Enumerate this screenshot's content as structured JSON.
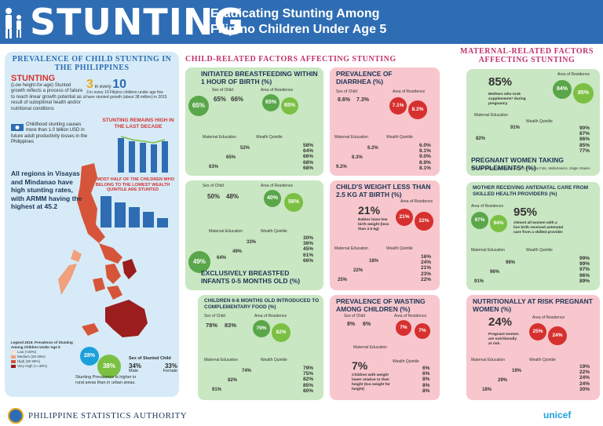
{
  "header": {
    "title": "STUNTING",
    "subtitle_line1": "Eradicating Stunting Among",
    "subtitle_line2": "Filipino Children Under Age 5"
  },
  "left": {
    "heading": "PREVALENCE OF CHILD STUNTING IN THE PHILIPPINES",
    "stunting_label": "STUNTING",
    "definition": "(Low height-for-age) Stunted growth reflects a process of failure to reach linear growth potential as a result of suboptimal health and/or nutritional conditions",
    "ratio_text": "3 in every 10 Filipino children under age five have stunted growth (about 38 million) in 2015",
    "ratio_a": "3",
    "ratio_b": "10",
    "cost_text": "Childhood stunting causes more than 1.0 billion USD in future adult productivity losses in the Philippines",
    "remains_high": "STUNTING REMAINS HIGH IN THE LAST DECADE",
    "almost_half": "ALMOST HALF OF THE CHILDREN WHO BELONG TO THE LOWEST WEALTH QUINTILE ARE STUNTED",
    "all_regions": "All regions in Visayas and Mindanao have high stunting rates, with ARMM having the highest at 45.2",
    "legend_title": "Legend 2015: Prevalence of Stunting Among Children Under Age 5",
    "legend_items": [
      "Low (<20%)",
      "Medium (20-29%)",
      "High (30-39%)",
      "Very High (>=40%)"
    ],
    "legend_colors": [
      "#f7e0d0",
      "#f0a07a",
      "#d6553a",
      "#9b1d1d"
    ],
    "urban_pct": "28%",
    "rural_pct": "38%",
    "urban_label": "Urban",
    "rural_label": "Rural",
    "sex_title": "Sex of Stunted Child",
    "male_pct": "34%",
    "female_pct": "33%",
    "male_label": "Male",
    "female_label": "Female",
    "rural_note": "Stunting Prevalence is higher in rural areas than in urban areas."
  },
  "sections": {
    "child_factors": "CHILD-RELATED FACTORS AFFECTING STUNTING",
    "maternal_factors": "MATERNAL-RELATED FACTORS AFFECTING STUNTING"
  },
  "cards": {
    "breastfeeding": {
      "title": "INITIATED BREASTFEEDING WITHIN 1 HOUR OF BIRTH (%)",
      "overall": "65%",
      "sex_label": "Sex of Child",
      "male": "65%",
      "female": "66%",
      "area_label": "Area of Residence",
      "urban": "65%",
      "rural": "65%",
      "edu_label": "Maternal Education",
      "edu_low": "63%",
      "edu_mid": "65%",
      "edu_high": "52%",
      "wealth_label": "Wealth Quintile",
      "wealth": [
        "58%",
        "64%",
        "66%",
        "68%",
        "68%"
      ]
    },
    "diarrhea": {
      "title": "PREVALENCE OF DIARRHEA (%)",
      "sex_label": "Sex of Child",
      "male": "8.6%",
      "female": "7.3%",
      "area_label": "Area of Residence",
      "urban": "7.1%",
      "rural": "8.2%",
      "edu_label": "Maternal Education",
      "edu_low": "9.2%",
      "edu_mid": "8.3%",
      "edu_high": "6.2%",
      "wealth_label": "Wealth Quintile",
      "wealth": [
        "6.0%",
        "8.1%",
        "9.0%",
        "8.9%",
        "8.1%"
      ]
    },
    "exclusive": {
      "title": "EXCLUSIVELY BREASTFED INFANTS 0-5 MONTHS OLD (%)",
      "overall": "49%",
      "sex_label": "Sex of Child",
      "male": "50%",
      "female": "48%",
      "area_label": "Area of Residence",
      "urban": "40%",
      "rural": "56%",
      "edu_label": "Maternal Education",
      "edu_low": "64%",
      "edu_mid": "49%",
      "edu_high": "33%",
      "wealth_label": "Wealth Quintile",
      "wealth": [
        "30%",
        "36%",
        "45%",
        "61%",
        "66%"
      ]
    },
    "lowbirth": {
      "title": "CHILD'S WEIGHT LESS THAN 2.5 KG AT BIRTH (%)",
      "overall": "21%",
      "overall_desc": "Babies have low birth weight (less than 2.5 kg)",
      "area_label": "Area of Residence",
      "urban": "21%",
      "rural": "22%",
      "edu_label": "Maternal Education",
      "edu_low": "25%",
      "edu_mid": "22%",
      "edu_high": "18%",
      "wealth_label": "Wealth Quintile",
      "wealth": [
        "16%",
        "24%",
        "21%",
        "23%",
        "22%"
      ]
    },
    "complementary": {
      "title": "CHILDREN 6-8 MONTHS OLD INTRODUCED TO COMPLEMENTARY FOOD (%)",
      "sex_label": "Sex of Child",
      "male": "78%",
      "female": "83%",
      "area_label": "Area of Residence",
      "urban": "79%",
      "rural": "82%",
      "edu_label": "Maternal Education",
      "edu_low": "91%",
      "edu_mid": "82%",
      "edu_high": "74%",
      "wealth_label": "Wealth Quintile",
      "wealth": [
        "79%",
        "75%",
        "82%",
        "85%",
        "80%"
      ]
    },
    "wasting": {
      "title": "PREVALENCE OF WASTING AMONG CHILDREN (%)",
      "overall": "7%",
      "overall_desc": "Children with weight lower relative to their height (too weight for height)",
      "sex_label": "Sex of Child",
      "male": "8%",
      "female": "6%",
      "area_label": "Area of Residence",
      "urban": "7%",
      "rural": "7%",
      "edu_label": "Maternal Education",
      "edu_low": "9%",
      "edu_mid": "8%",
      "edu_high": "7%",
      "wealth_label": "Wealth Quintile",
      "wealth": [
        "6%",
        "6%",
        "8%",
        "8%",
        "8%"
      ]
    },
    "supplements": {
      "title": "PREGNANT WOMEN TAKING SUPPLEMENTS* (%)",
      "note": "*Ferrous Sulfate, Iron-Folic Acid, Any Iron, Any Folic, Multivitamins, Single Vitamin",
      "overall": "85%",
      "overall_desc": "Mothers who took supplements* during pregnancy",
      "area_label": "Area of Residence",
      "urban": "84%",
      "rural": "85%",
      "edu_label": "Maternal Education",
      "edu_low": "82%",
      "edu_mid": "91%",
      "wealth_label": "Wealth Quintile",
      "wealth": [
        "90%",
        "87%",
        "86%",
        "85%",
        "77%"
      ]
    },
    "antenatal": {
      "title": "MOTHER RECEIVING ANTENATAL CARE FROM SKILLED HEALTH PROVIDERS (%)",
      "overall": "95%",
      "overall_desc": "Almost all women with a live birth received antenatal care from a skilled provider",
      "area_label": "Area of Residence",
      "urban": "97%",
      "rural": "94%",
      "edu_label": "Maternal Education",
      "edu_low": "91%",
      "edu_mid": "96%",
      "edu_high": "96%",
      "wealth_label": "Wealth Quintile",
      "wealth": [
        "99%",
        "99%",
        "97%",
        "96%",
        "89%"
      ]
    },
    "atrisk": {
      "title": "NUTRITIONALLY AT RISK PREGNANT WOMEN (%)",
      "overall": "24%",
      "overall_desc": "Pregnant women are nutritionally at risk.",
      "area_label": "Area of Residence",
      "urban": "25%",
      "rural": "24%",
      "edu_label": "Maternal Education",
      "edu_low": "18%",
      "edu_mid": "29%",
      "edu_high": "19%",
      "wealth_label": "Wealth Quintile",
      "wealth": [
        "19%",
        "22%",
        "24%",
        "24%",
        "30%"
      ]
    }
  },
  "footer": {
    "org": "PHILIPPINE STATISTICS AUTHORITY",
    "partner": "unicef"
  }
}
